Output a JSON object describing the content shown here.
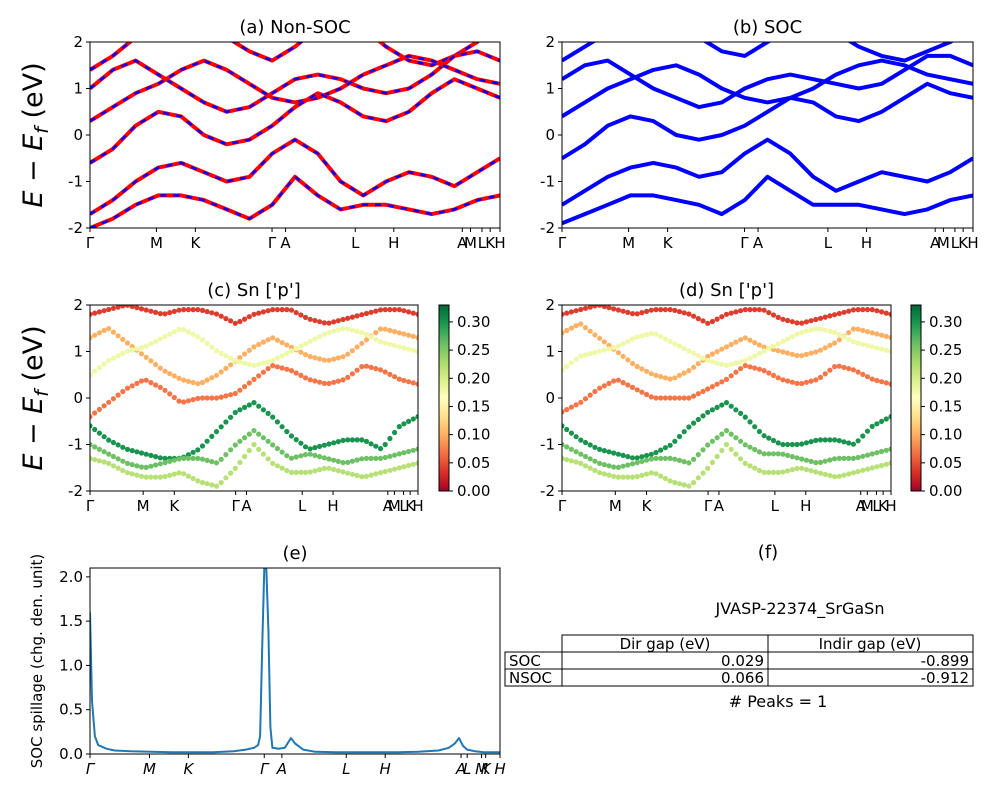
{
  "chart_data": [
    {
      "panel": "a",
      "type": "line",
      "title": "(a) Non-SOC",
      "ylabel": "E − E_f (eV)",
      "ylim": [
        -2,
        2
      ],
      "yticks": [
        2,
        1,
        0,
        -1,
        -2
      ],
      "kpoints": [
        "Γ",
        "M",
        "K",
        "Γ",
        "A",
        "L",
        "H",
        "A",
        "M",
        "L",
        "K",
        "H"
      ],
      "kpos": [
        0,
        0.162,
        0.257,
        0.444,
        0.477,
        0.647,
        0.741,
        0.908,
        0.928,
        0.956,
        0.976,
        1.0
      ],
      "line_colors": [
        "#ff0000",
        "#0000ff"
      ],
      "line_style": "red solid with blue dashed overlay",
      "bands": [
        [
          1.4,
          1.7,
          2.1,
          2.5,
          2.7,
          2.5,
          2.1,
          1.8,
          1.6,
          1.9,
          2.3,
          2.6,
          2.3,
          1.9,
          1.6,
          1.5,
          1.7,
          2.0,
          2.4
        ],
        [
          1.0,
          1.4,
          1.6,
          1.3,
          1.0,
          0.7,
          0.5,
          0.6,
          0.9,
          1.2,
          1.3,
          1.2,
          1.0,
          0.9,
          1.0,
          1.3,
          1.7,
          1.8,
          1.6
        ],
        [
          0.3,
          0.6,
          0.9,
          1.1,
          1.4,
          1.6,
          1.4,
          1.1,
          0.8,
          0.7,
          0.8,
          1.0,
          1.3,
          1.5,
          1.7,
          1.6,
          1.4,
          1.2,
          1.1
        ],
        [
          -0.6,
          -0.3,
          0.2,
          0.5,
          0.4,
          0.0,
          -0.2,
          -0.1,
          0.2,
          0.6,
          0.9,
          0.7,
          0.4,
          0.3,
          0.5,
          0.9,
          1.2,
          1.0,
          0.8
        ],
        [
          -1.7,
          -1.4,
          -1.0,
          -0.7,
          -0.6,
          -0.8,
          -1.0,
          -0.9,
          -0.4,
          -0.1,
          -0.4,
          -1.0,
          -1.3,
          -1.0,
          -0.8,
          -0.9,
          -1.1,
          -0.8,
          -0.5
        ],
        [
          -2.0,
          -1.8,
          -1.5,
          -1.3,
          -1.3,
          -1.4,
          -1.6,
          -1.8,
          -1.5,
          -0.9,
          -1.3,
          -1.6,
          -1.5,
          -1.5,
          -1.6,
          -1.7,
          -1.6,
          -1.4,
          -1.3
        ]
      ]
    },
    {
      "panel": "b",
      "type": "line",
      "title": "(b) SOC",
      "ylim": [
        -2,
        2
      ],
      "yticks": [
        2,
        1,
        0,
        -1,
        -2
      ],
      "kpoints": [
        "Γ",
        "M",
        "K",
        "Γ",
        "A",
        "L",
        "H",
        "A",
        "M",
        "L",
        "K",
        "H"
      ],
      "kpos": [
        0,
        0.162,
        0.257,
        0.444,
        0.477,
        0.647,
        0.741,
        0.908,
        0.928,
        0.956,
        0.976,
        1.0
      ],
      "line_colors": [
        "#0000ff"
      ],
      "bands": [
        [
          1.6,
          1.9,
          2.2,
          2.5,
          2.7,
          2.4,
          2.1,
          1.8,
          1.7,
          2.0,
          2.3,
          2.5,
          2.2,
          1.9,
          1.7,
          1.6,
          1.8,
          2.0,
          2.3
        ],
        [
          1.2,
          1.5,
          1.6,
          1.3,
          1.0,
          0.8,
          0.6,
          0.7,
          1.0,
          1.2,
          1.3,
          1.2,
          1.1,
          1.0,
          1.1,
          1.4,
          1.7,
          1.7,
          1.5
        ],
        [
          0.4,
          0.7,
          1.0,
          1.2,
          1.4,
          1.5,
          1.3,
          1.0,
          0.8,
          0.7,
          0.8,
          1.0,
          1.3,
          1.5,
          1.6,
          1.5,
          1.3,
          1.2,
          1.1
        ],
        [
          -0.5,
          -0.2,
          0.2,
          0.4,
          0.3,
          0.0,
          -0.1,
          0.0,
          0.2,
          0.5,
          0.8,
          0.7,
          0.4,
          0.3,
          0.5,
          0.8,
          1.1,
          0.9,
          0.8
        ],
        [
          -1.5,
          -1.2,
          -0.9,
          -0.7,
          -0.6,
          -0.7,
          -0.9,
          -0.8,
          -0.4,
          -0.1,
          -0.4,
          -0.9,
          -1.2,
          -1.0,
          -0.8,
          -0.9,
          -1.0,
          -0.8,
          -0.5
        ],
        [
          -1.9,
          -1.7,
          -1.5,
          -1.3,
          -1.3,
          -1.4,
          -1.5,
          -1.7,
          -1.4,
          -0.9,
          -1.2,
          -1.5,
          -1.5,
          -1.5,
          -1.6,
          -1.7,
          -1.6,
          -1.4,
          -1.3
        ]
      ]
    },
    {
      "panel": "c",
      "type": "scatter",
      "title": "(c)  Sn ['p']",
      "ylabel": "E − E_f (eV)",
      "ylim": [
        -2,
        2
      ],
      "yticks": [
        2,
        1,
        0,
        -1,
        -2
      ],
      "kpoints": [
        "Γ",
        "M",
        "K",
        "Γ",
        "A",
        "L",
        "H",
        "A",
        "M",
        "L",
        "K",
        "H"
      ],
      "kpos": [
        0,
        0.162,
        0.257,
        0.444,
        0.477,
        0.647,
        0.741,
        0.908,
        0.928,
        0.956,
        0.976,
        1.0
      ],
      "colorbar": {
        "cmap": "RdYlGn",
        "min": 0.0,
        "max": 0.33,
        "ticks": [
          "0.00",
          "0.05",
          "0.10",
          "0.15",
          "0.20",
          "0.25",
          "0.30"
        ]
      },
      "bands": [
        {
          "e": [
            1.8,
            1.9,
            2.0,
            1.9,
            1.8,
            1.9,
            1.9,
            1.8,
            1.6,
            1.8,
            1.9,
            1.9,
            1.7,
            1.6,
            1.7,
            1.8,
            1.9,
            1.9,
            1.8
          ],
          "w": 0.04
        },
        {
          "e": [
            1.3,
            1.5,
            1.2,
            0.9,
            0.6,
            0.4,
            0.3,
            0.5,
            0.8,
            1.1,
            1.3,
            1.1,
            0.9,
            0.8,
            0.9,
            1.2,
            1.5,
            1.4,
            1.3
          ],
          "w": 0.1
        },
        {
          "e": [
            0.5,
            0.8,
            1.0,
            1.1,
            1.3,
            1.5,
            1.3,
            1.0,
            0.8,
            0.7,
            0.8,
            1.0,
            1.2,
            1.4,
            1.5,
            1.4,
            1.2,
            1.1,
            1.0
          ],
          "w": 0.18
        },
        {
          "e": [
            -0.4,
            -0.1,
            0.2,
            0.4,
            0.2,
            -0.1,
            0.0,
            0.0,
            0.1,
            0.4,
            0.7,
            0.6,
            0.4,
            0.3,
            0.4,
            0.7,
            0.6,
            0.4,
            0.3
          ],
          "w": 0.07
        },
        {
          "e": [
            -0.6,
            -0.9,
            -1.1,
            -1.2,
            -1.3,
            -1.3,
            -1.1,
            -0.7,
            -0.3,
            -0.1,
            -0.4,
            -0.8,
            -1.1,
            -1.0,
            -0.9,
            -0.9,
            -1.1,
            -0.6,
            -0.4
          ],
          "w": 0.3
        },
        {
          "e": [
            -1.0,
            -1.2,
            -1.4,
            -1.5,
            -1.4,
            -1.3,
            -1.3,
            -1.4,
            -1.0,
            -0.7,
            -1.0,
            -1.3,
            -1.2,
            -1.3,
            -1.4,
            -1.3,
            -1.3,
            -1.2,
            -1.1
          ],
          "w": 0.26
        },
        {
          "e": [
            -1.3,
            -1.4,
            -1.6,
            -1.7,
            -1.7,
            -1.6,
            -1.8,
            -1.9,
            -1.5,
            -1.0,
            -1.4,
            -1.6,
            -1.6,
            -1.5,
            -1.6,
            -1.7,
            -1.6,
            -1.5,
            -1.4
          ],
          "w": 0.22
        }
      ]
    },
    {
      "panel": "d",
      "type": "scatter",
      "title": "(d) Sn ['p']",
      "ylim": [
        -2,
        2
      ],
      "yticks": [
        2,
        1,
        0,
        -1,
        -2
      ],
      "kpoints": [
        "Γ",
        "M",
        "K",
        "Γ",
        "A",
        "L",
        "H",
        "A",
        "M",
        "L",
        "K",
        "H"
      ],
      "kpos": [
        0,
        0.162,
        0.257,
        0.444,
        0.477,
        0.647,
        0.741,
        0.908,
        0.928,
        0.956,
        0.976,
        1.0
      ],
      "colorbar": {
        "cmap": "RdYlGn",
        "min": 0.0,
        "max": 0.33,
        "ticks": [
          "0.00",
          "0.05",
          "0.10",
          "0.15",
          "0.20",
          "0.25",
          "0.30"
        ]
      },
      "bands": [
        {
          "e": [
            1.8,
            1.9,
            2.0,
            1.9,
            1.8,
            1.9,
            1.9,
            1.8,
            1.6,
            1.8,
            1.9,
            1.9,
            1.7,
            1.6,
            1.7,
            1.8,
            1.9,
            1.9,
            1.8
          ],
          "w": 0.04
        },
        {
          "e": [
            1.4,
            1.6,
            1.3,
            1.0,
            0.7,
            0.5,
            0.4,
            0.6,
            0.9,
            1.1,
            1.3,
            1.1,
            1.0,
            0.9,
            1.0,
            1.2,
            1.5,
            1.4,
            1.3
          ],
          "w": 0.1
        },
        {
          "e": [
            0.6,
            0.9,
            1.0,
            1.1,
            1.3,
            1.4,
            1.2,
            1.0,
            0.8,
            0.7,
            0.8,
            1.0,
            1.2,
            1.4,
            1.5,
            1.4,
            1.2,
            1.1,
            1.0
          ],
          "w": 0.18
        },
        {
          "e": [
            -0.3,
            -0.1,
            0.2,
            0.4,
            0.2,
            0.0,
            0.0,
            0.0,
            0.2,
            0.4,
            0.7,
            0.6,
            0.4,
            0.3,
            0.4,
            0.7,
            0.6,
            0.4,
            0.3
          ],
          "w": 0.07
        },
        {
          "e": [
            -0.6,
            -0.9,
            -1.1,
            -1.2,
            -1.3,
            -1.2,
            -1.0,
            -0.6,
            -0.3,
            -0.1,
            -0.4,
            -0.8,
            -1.0,
            -1.0,
            -0.9,
            -0.9,
            -1.0,
            -0.6,
            -0.4
          ],
          "w": 0.3
        },
        {
          "e": [
            -1.0,
            -1.2,
            -1.4,
            -1.5,
            -1.4,
            -1.3,
            -1.3,
            -1.4,
            -1.0,
            -0.7,
            -1.0,
            -1.2,
            -1.2,
            -1.3,
            -1.4,
            -1.3,
            -1.3,
            -1.2,
            -1.1
          ],
          "w": 0.26
        },
        {
          "e": [
            -1.3,
            -1.4,
            -1.6,
            -1.7,
            -1.7,
            -1.6,
            -1.8,
            -1.9,
            -1.5,
            -1.0,
            -1.4,
            -1.6,
            -1.6,
            -1.5,
            -1.6,
            -1.7,
            -1.6,
            -1.5,
            -1.4
          ],
          "w": 0.22
        }
      ]
    },
    {
      "panel": "e",
      "type": "line",
      "title": "(e)",
      "ylabel": "SOC spillage (chg. den. unit)",
      "ylim": [
        0,
        2.1
      ],
      "yticks": [
        "0.0",
        "0.5",
        "1.0",
        "1.5",
        "2.0"
      ],
      "kpoints": [
        "Γ",
        "M",
        "K",
        "Γ",
        "A",
        "L",
        "H",
        "A",
        "L",
        "M",
        "K",
        "H"
      ],
      "kpos": [
        0,
        0.145,
        0.24,
        0.425,
        0.468,
        0.625,
        0.72,
        0.905,
        0.92,
        0.955,
        0.965,
        1.0
      ],
      "line_color": "#1f77b4",
      "x": [
        0,
        0.005,
        0.012,
        0.02,
        0.04,
        0.06,
        0.1,
        0.15,
        0.2,
        0.25,
        0.3,
        0.35,
        0.38,
        0.4,
        0.41,
        0.415,
        0.42,
        0.425,
        0.43,
        0.435,
        0.44,
        0.445,
        0.46,
        0.475,
        0.49,
        0.5,
        0.52,
        0.55,
        0.6,
        0.65,
        0.7,
        0.75,
        0.8,
        0.85,
        0.875,
        0.89,
        0.9,
        0.91,
        0.92,
        0.94,
        0.96,
        0.98,
        1.0
      ],
      "y": [
        1.6,
        0.6,
        0.2,
        0.1,
        0.06,
        0.04,
        0.03,
        0.025,
        0.02,
        0.02,
        0.02,
        0.03,
        0.05,
        0.07,
        0.1,
        0.2,
        1.2,
        2.1,
        2.1,
        1.4,
        0.3,
        0.07,
        0.06,
        0.07,
        0.18,
        0.12,
        0.05,
        0.025,
        0.02,
        0.02,
        0.02,
        0.02,
        0.025,
        0.04,
        0.07,
        0.12,
        0.18,
        0.09,
        0.05,
        0.03,
        0.02,
        0.02,
        0.02
      ]
    }
  ],
  "panel_f": {
    "title": "(f)",
    "subtitle": "JVASP-22374_SrGaSn",
    "table": {
      "headers": [
        "Dir gap (eV)",
        "Indir gap (eV)"
      ],
      "rows": [
        {
          "label": "SOC",
          "dir": "0.029",
          "indir": "-0.899"
        },
        {
          "label": "NSOC",
          "dir": "0.066",
          "indir": "-0.912"
        }
      ]
    },
    "peaks_text": "# Peaks = 1"
  }
}
